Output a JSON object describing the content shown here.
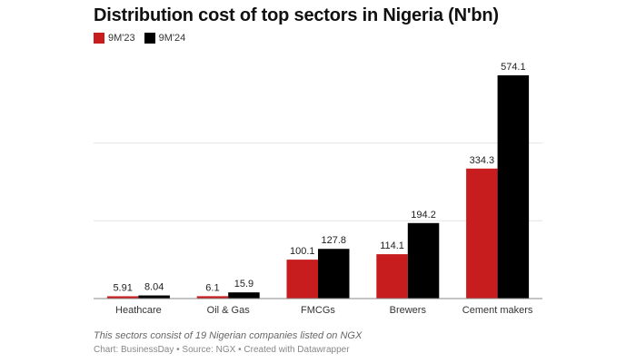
{
  "chart_data": {
    "type": "bar",
    "title": "Distribution cost of top sectors in Nigeria (N'bn)",
    "categories": [
      "Heathcare",
      "Oil & Gas",
      "FMCGs",
      "Brewers",
      "Cement makers"
    ],
    "series": [
      {
        "name": "9M'23",
        "color": "#c81d1f",
        "values": [
          5.91,
          6.1,
          100.1,
          114.1,
          334.3
        ],
        "labels": [
          "5.91",
          "6.1",
          "100.1",
          "114.1",
          "334.3"
        ]
      },
      {
        "name": "9M'24",
        "color": "#000000",
        "values": [
          8.04,
          15.9,
          127.8,
          194.2,
          574.1
        ],
        "labels": [
          "8.04",
          "15.9",
          "127.8",
          "194.2",
          "574.1"
        ]
      }
    ],
    "ylim": [
      0,
      574.1
    ],
    "gridlines": [
      200,
      400
    ],
    "grid": true,
    "y_tick_labels": false,
    "legend_placement": "top-left",
    "xlabel": "",
    "ylabel": ""
  },
  "notes": "This sectors consist of 19 Nigerian companies listed on NGX",
  "source": "Chart: BusinessDay • Source: NGX • Created with Datawrapper"
}
